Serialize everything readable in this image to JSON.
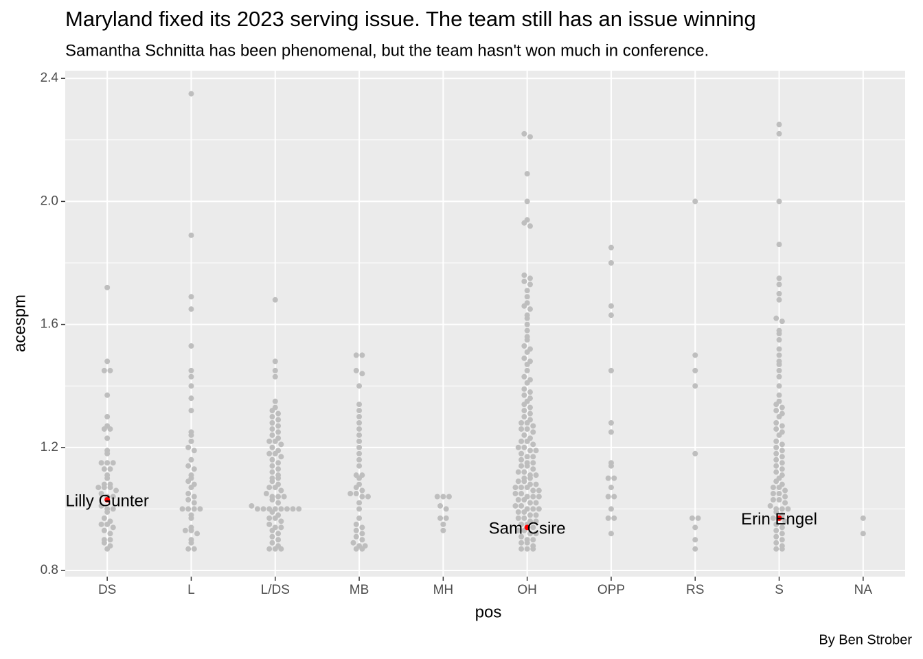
{
  "chart_data": {
    "type": "dotplot",
    "title": "Maryland fixed its 2023 serving issue. The team still has an issue winning",
    "subtitle": "Samantha Schnitta has been phenomenal, but the team hasn't won much in conference.",
    "x_label": "pos",
    "y_label": "acespm",
    "caption": "By Ben Strober",
    "categories": [
      "DS",
      "L",
      "L/DS",
      "MB",
      "MH",
      "OH",
      "OPP",
      "RS",
      "S",
      "NA"
    ],
    "color": "#bebebe",
    "values": [
      [
        1.72,
        1.48,
        1.45,
        1.45,
        1.37,
        1.3,
        1.27,
        1.26,
        1.26,
        1.23,
        1.19,
        1.18,
        1.15,
        1.15,
        1.15,
        1.13,
        1.13,
        1.11,
        1.1,
        1.08,
        1.08,
        1.07,
        1.07,
        1.07,
        1.06,
        1.05,
        1.04,
        1.04,
        1.01,
        1.0,
        1.0,
        0.99,
        0.97,
        0.96,
        0.95,
        0.95,
        0.94,
        0.93,
        0.92,
        0.9,
        0.9,
        0.89,
        0.88,
        0.87
      ],
      [
        2.35,
        1.89,
        1.69,
        1.65,
        1.53,
        1.45,
        1.43,
        1.4,
        1.36,
        1.32,
        1.25,
        1.24,
        1.22,
        1.2,
        1.19,
        1.16,
        1.14,
        1.13,
        1.11,
        1.1,
        1.09,
        1.08,
        1.07,
        1.05,
        1.04,
        1.03,
        1.02,
        1.0,
        1.0,
        1.0,
        1.0,
        0.98,
        0.97,
        0.94,
        0.93,
        0.93,
        0.92,
        0.9,
        0.89,
        0.87,
        0.87
      ],
      [
        1.68,
        1.48,
        1.45,
        1.43,
        1.35,
        1.33,
        1.32,
        1.31,
        1.3,
        1.29,
        1.28,
        1.27,
        1.26,
        1.25,
        1.24,
        1.23,
        1.22,
        1.22,
        1.21,
        1.2,
        1.19,
        1.18,
        1.18,
        1.17,
        1.16,
        1.15,
        1.14,
        1.13,
        1.12,
        1.11,
        1.1,
        1.1,
        1.09,
        1.08,
        1.07,
        1.07,
        1.06,
        1.05,
        1.04,
        1.04,
        1.04,
        1.03,
        1.02,
        1.01,
        1.0,
        1.0,
        1.0,
        1.0,
        1.0,
        1.0,
        1.0,
        1.0,
        0.99,
        0.98,
        0.97,
        0.97,
        0.96,
        0.95,
        0.94,
        0.94,
        0.93,
        0.92,
        0.91,
        0.9,
        0.89,
        0.88,
        0.87,
        0.87,
        0.87
      ],
      [
        1.5,
        1.5,
        1.45,
        1.44,
        1.4,
        1.34,
        1.32,
        1.3,
        1.28,
        1.26,
        1.24,
        1.22,
        1.2,
        1.18,
        1.16,
        1.14,
        1.11,
        1.11,
        1.1,
        1.08,
        1.07,
        1.06,
        1.05,
        1.05,
        1.04,
        1.04,
        1.02,
        1.0,
        0.97,
        0.95,
        0.94,
        0.93,
        0.92,
        0.91,
        0.9,
        0.89,
        0.88,
        0.88,
        0.87,
        0.87
      ],
      [
        1.04,
        1.04,
        1.04,
        1.01,
        1.0,
        0.97,
        0.97,
        0.95,
        0.93
      ],
      [
        2.22,
        2.21,
        2.09,
        2.0,
        1.94,
        1.93,
        1.92,
        1.76,
        1.75,
        1.74,
        1.73,
        1.71,
        1.69,
        1.67,
        1.66,
        1.65,
        1.63,
        1.62,
        1.6,
        1.58,
        1.56,
        1.55,
        1.53,
        1.52,
        1.51,
        1.49,
        1.48,
        1.47,
        1.45,
        1.43,
        1.42,
        1.41,
        1.39,
        1.38,
        1.37,
        1.36,
        1.35,
        1.34,
        1.33,
        1.32,
        1.31,
        1.3,
        1.29,
        1.28,
        1.28,
        1.27,
        1.26,
        1.26,
        1.25,
        1.24,
        1.23,
        1.22,
        1.22,
        1.21,
        1.2,
        1.2,
        1.19,
        1.19,
        1.18,
        1.17,
        1.17,
        1.16,
        1.15,
        1.15,
        1.14,
        1.14,
        1.13,
        1.12,
        1.12,
        1.11,
        1.11,
        1.1,
        1.1,
        1.09,
        1.09,
        1.08,
        1.08,
        1.07,
        1.07,
        1.07,
        1.06,
        1.06,
        1.05,
        1.05,
        1.04,
        1.04,
        1.04,
        1.03,
        1.03,
        1.02,
        1.02,
        1.01,
        1.01,
        1.0,
        1.0,
        1.0,
        0.99,
        0.99,
        0.98,
        0.98,
        0.97,
        0.97,
        0.96,
        0.96,
        0.95,
        0.95,
        0.94,
        0.93,
        0.93,
        0.92,
        0.92,
        0.91,
        0.9,
        0.9,
        0.89,
        0.89,
        0.88,
        0.87,
        0.87,
        0.87
      ],
      [
        1.85,
        1.8,
        1.66,
        1.63,
        1.45,
        1.28,
        1.25,
        1.15,
        1.14,
        1.1,
        1.1,
        1.07,
        1.04,
        1.04,
        1.0,
        0.97,
        0.97,
        0.92
      ],
      [
        2.0,
        1.5,
        1.45,
        1.4,
        1.18,
        0.97,
        0.97,
        0.94,
        0.9,
        0.87
      ],
      [
        2.25,
        2.22,
        2.0,
        1.86,
        1.75,
        1.73,
        1.7,
        1.68,
        1.62,
        1.61,
        1.58,
        1.57,
        1.55,
        1.52,
        1.5,
        1.48,
        1.47,
        1.45,
        1.43,
        1.4,
        1.37,
        1.35,
        1.34,
        1.33,
        1.32,
        1.31,
        1.3,
        1.28,
        1.27,
        1.26,
        1.25,
        1.24,
        1.22,
        1.21,
        1.2,
        1.19,
        1.18,
        1.17,
        1.16,
        1.15,
        1.14,
        1.13,
        1.12,
        1.11,
        1.1,
        1.09,
        1.08,
        1.07,
        1.07,
        1.06,
        1.05,
        1.05,
        1.04,
        1.03,
        1.03,
        1.02,
        1.01,
        1.0,
        1.0,
        1.0,
        0.99,
        0.98,
        0.97,
        0.97,
        0.96,
        0.95,
        0.94,
        0.93,
        0.92,
        0.91,
        0.9,
        0.89,
        0.88,
        0.87,
        0.87
      ],
      [
        0.97,
        0.92
      ]
    ],
    "highlights": [
      {
        "label": "Lilly Gunter",
        "category": "DS",
        "value": 1.03,
        "color": "#ff0000"
      },
      {
        "label": "Sam Csire",
        "category": "OH",
        "value": 0.94,
        "color": "#ff0000"
      },
      {
        "label": "Erin Engel",
        "category": "S",
        "value": 0.97,
        "color": "#ff0000"
      }
    ],
    "ylim": [
      0.78,
      2.425
    ],
    "yticks": [
      0.8,
      1.2,
      1.6,
      {
        "value": 2,
        "label": "2.0"
      },
      2.4
    ],
    "yminor": [
      1,
      1.4,
      1.8,
      2.2
    ],
    "grid": true
  }
}
